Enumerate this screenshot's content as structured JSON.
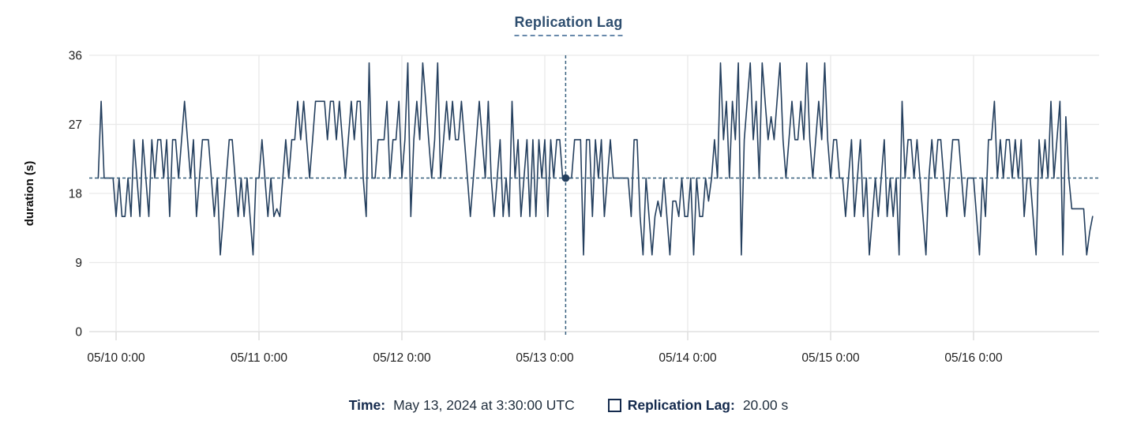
{
  "chart": {
    "title": "Replication Lag",
    "ylabel": "duration (s)"
  },
  "tooltip": {
    "time_label": "Time:",
    "time_value": "May 13, 2024 at 3:30:00 UTC",
    "series_label": "Replication Lag:",
    "series_value": "20.00 s"
  },
  "colors": {
    "line": "#243f5e",
    "title": "#2e4e6f",
    "crosshair": "#38607f",
    "grid": "#e9e9e9",
    "axis": "#d9d9d9",
    "tick_text": "#1f1f1f"
  },
  "chart_data": {
    "type": "line",
    "title": "Replication Lag",
    "xlabel": "",
    "ylabel": "duration (s)",
    "ylim": [
      0,
      36
    ],
    "yticks": [
      0,
      9,
      18,
      27,
      36
    ],
    "xtick_labels": [
      "05/10 0:00",
      "05/11 0:00",
      "05/12 0:00",
      "05/13 0:00",
      "05/14 0:00",
      "05/15 0:00",
      "05/16 0:00"
    ],
    "grid": true,
    "legend_position": "bottom",
    "interval_minutes": 30,
    "start_offset_hours": -3,
    "crosshair": {
      "index": 157,
      "value": 20,
      "time": "May 13, 2024 at 3:30:00 UTC",
      "value_label": "20.00 s"
    },
    "series": [
      {
        "name": "Replication Lag",
        "color": "#243f5e",
        "values": [
          20,
          30,
          20,
          20,
          20,
          20,
          15,
          20,
          15,
          15,
          20,
          15,
          25,
          20,
          15,
          25,
          20,
          15,
          25,
          20,
          25,
          25,
          20,
          25,
          15,
          25,
          25,
          20,
          25,
          30,
          25,
          20,
          25,
          15,
          20,
          25,
          25,
          25,
          20,
          15,
          20,
          10,
          15,
          20,
          25,
          25,
          20,
          15,
          20,
          15,
          20,
          15,
          10,
          20,
          20,
          25,
          20,
          15,
          20,
          15,
          16,
          15,
          20,
          25,
          20,
          25,
          25,
          30,
          25,
          30,
          25,
          20,
          25,
          30,
          30,
          30,
          30,
          25,
          30,
          30,
          25,
          30,
          25,
          20,
          25,
          30,
          25,
          30,
          30,
          20,
          15,
          35,
          20,
          20,
          25,
          25,
          25,
          30,
          20,
          25,
          25,
          30,
          20,
          25,
          35,
          15,
          25,
          30,
          25,
          35,
          30,
          25,
          20,
          25,
          35,
          20,
          25,
          30,
          25,
          30,
          25,
          25,
          30,
          25,
          20,
          15,
          20,
          25,
          30,
          25,
          20,
          30,
          20,
          15,
          20,
          25,
          15,
          20,
          15,
          30,
          20,
          25,
          15,
          20,
          25,
          15,
          25,
          15,
          25,
          20,
          25,
          15,
          25,
          20,
          25,
          25,
          20,
          20,
          20,
          20,
          25,
          25,
          25,
          10,
          25,
          25,
          15,
          25,
          20,
          25,
          15,
          20,
          25,
          20,
          20,
          20,
          20,
          20,
          20,
          15,
          25,
          25,
          15,
          10,
          20,
          15,
          10,
          15,
          17,
          15,
          20,
          15,
          10,
          17,
          17,
          15,
          20,
          15,
          15,
          20,
          10,
          20,
          15,
          15,
          20,
          17,
          20,
          25,
          20,
          35,
          25,
          30,
          20,
          30,
          25,
          35,
          10,
          25,
          30,
          35,
          25,
          30,
          20,
          35,
          30,
          25,
          28,
          25,
          30,
          35,
          25,
          20,
          25,
          30,
          25,
          25,
          30,
          25,
          35,
          25,
          20,
          25,
          30,
          25,
          35,
          25,
          20,
          25,
          25,
          20,
          20,
          15,
          20,
          25,
          15,
          20,
          25,
          15,
          20,
          10,
          15,
          20,
          15,
          20,
          25,
          15,
          20,
          15,
          20,
          10,
          30,
          20,
          25,
          25,
          20,
          25,
          20,
          15,
          10,
          20,
          25,
          20,
          25,
          25,
          20,
          15,
          20,
          25,
          25,
          25,
          20,
          15,
          20,
          20,
          20,
          15,
          10,
          20,
          15,
          25,
          25,
          30,
          20,
          25,
          20,
          25,
          25,
          20,
          25,
          20,
          25,
          15,
          20,
          20,
          15,
          10,
          25,
          20,
          25,
          20,
          30,
          20,
          25,
          30,
          10,
          28,
          20,
          16,
          16,
          16,
          16,
          16,
          10,
          13,
          15
        ]
      }
    ]
  }
}
